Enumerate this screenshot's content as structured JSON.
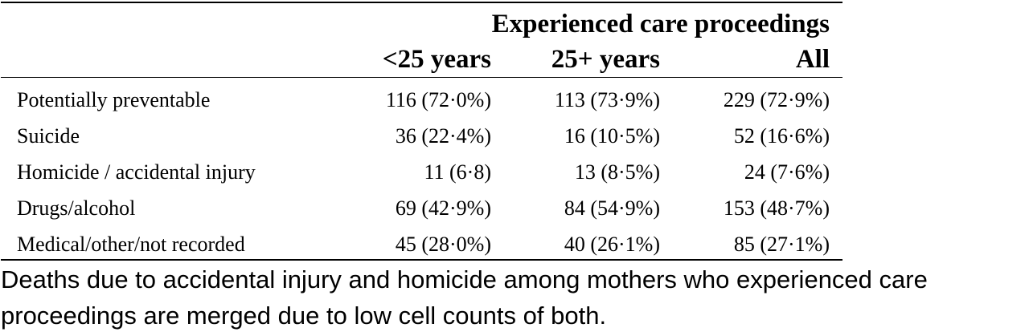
{
  "table": {
    "group_header": "Experienced care proceedings",
    "columns": [
      "<25 years",
      "25+ years",
      "All"
    ],
    "rows": [
      {
        "label": "Potentially preventable",
        "values": [
          "116 (72·0%)",
          "113 (73·9%)",
          "229 (72·9%)"
        ]
      },
      {
        "label": "Suicide",
        "values": [
          "36 (22·4%)",
          "16 (10·5%)",
          "52 (16·6%)"
        ]
      },
      {
        "label": "Homicide / accidental injury",
        "values": [
          "11 (6·8)",
          "13 (8·5%)",
          "24 (7·6%)"
        ]
      },
      {
        "label": "Drugs/alcohol",
        "values": [
          "69 (42·9%)",
          "84 (54·9%)",
          "153 (48·7%)"
        ]
      },
      {
        "label": "Medical/other/not recorded",
        "values": [
          "45 (28·0%)",
          "40 (26·1%)",
          "85 (27·1%)"
        ]
      }
    ]
  },
  "footnote": {
    "line1": "Deaths due to accidental injury and homicide among mothers who experienced care",
    "line2": "proceedings are merged due to low cell counts of both."
  }
}
